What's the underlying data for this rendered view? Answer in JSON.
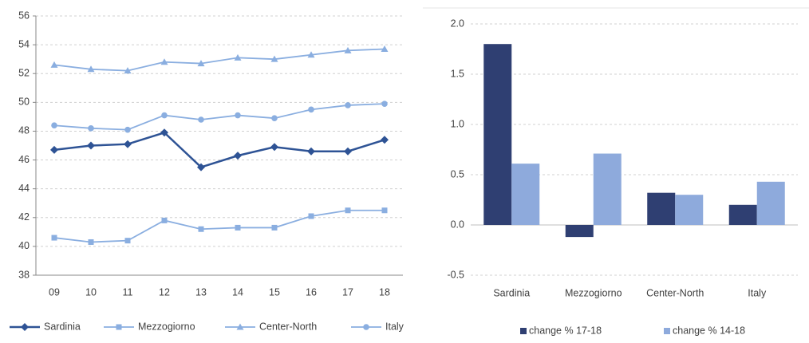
{
  "chart_data": [
    {
      "type": "line",
      "categories": [
        "09",
        "10",
        "11",
        "12",
        "13",
        "14",
        "15",
        "16",
        "17",
        "18"
      ],
      "ylim": [
        38,
        56
      ],
      "yticks": [
        38,
        40,
        42,
        44,
        46,
        48,
        50,
        52,
        54,
        56
      ],
      "grid": true,
      "series": [
        {
          "name": "Sardinia",
          "color": "#2e5395",
          "marker": "diamond",
          "values": [
            46.7,
            47.0,
            47.1,
            47.9,
            45.5,
            46.3,
            46.9,
            46.6,
            46.6,
            47.4
          ]
        },
        {
          "name": "Mezzogiorno",
          "color": "#8aaee0",
          "marker": "square",
          "values": [
            40.6,
            40.3,
            40.4,
            41.8,
            41.2,
            41.3,
            41.3,
            42.1,
            42.5,
            42.5
          ]
        },
        {
          "name": "Center-North",
          "color": "#8aaee0",
          "marker": "triangle",
          "values": [
            52.6,
            52.3,
            52.2,
            52.8,
            52.7,
            53.1,
            53.0,
            53.3,
            53.6,
            53.7
          ]
        },
        {
          "name": "Italy",
          "color": "#8aaee0",
          "marker": "circle",
          "values": [
            48.4,
            48.2,
            48.1,
            49.1,
            48.8,
            49.1,
            48.9,
            49.5,
            49.8,
            49.9
          ]
        }
      ]
    },
    {
      "type": "bar",
      "categories": [
        "Sardinia",
        "Mezzogiorno",
        "Center-North",
        "Italy"
      ],
      "ylim": [
        -0.5,
        2.0
      ],
      "yticks": [
        {
          "value": -0.5,
          "label": "-0.5"
        },
        {
          "value": 0,
          "label": "0.0"
        },
        {
          "value": 0.5,
          "label": "0.5"
        },
        {
          "value": 1,
          "label": "1.0"
        },
        {
          "value": 1.5,
          "label": "1.5"
        },
        {
          "value": 2,
          "label": "2.0"
        }
      ],
      "grid": true,
      "series": [
        {
          "name": "change % 17-18",
          "color": "#2f3f72",
          "values": [
            1.8,
            -0.12,
            0.32,
            0.2
          ]
        },
        {
          "name": "change % 14-18",
          "color": "#8eaadc",
          "values": [
            0.61,
            0.71,
            0.3,
            0.43
          ]
        }
      ]
    }
  ]
}
